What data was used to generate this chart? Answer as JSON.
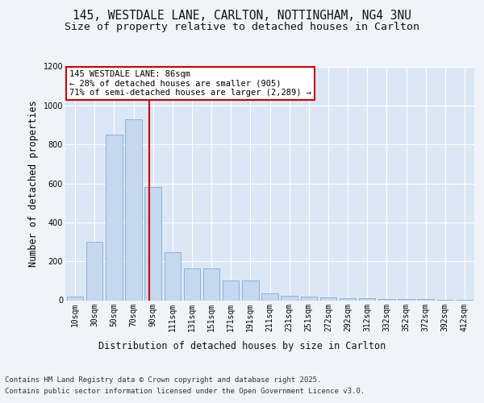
{
  "title_line1": "145, WESTDALE LANE, CARLTON, NOTTINGHAM, NG4 3NU",
  "title_line2": "Size of property relative to detached houses in Carlton",
  "xlabel": "Distribution of detached houses by size in Carlton",
  "ylabel": "Number of detached properties",
  "categories": [
    "10sqm",
    "30sqm",
    "50sqm",
    "70sqm",
    "90sqm",
    "111sqm",
    "131sqm",
    "151sqm",
    "171sqm",
    "191sqm",
    "211sqm",
    "231sqm",
    "251sqm",
    "272sqm",
    "292sqm",
    "312sqm",
    "332sqm",
    "352sqm",
    "372sqm",
    "392sqm",
    "412sqm"
  ],
  "values": [
    20,
    300,
    850,
    930,
    580,
    245,
    165,
    165,
    100,
    100,
    35,
    22,
    20,
    15,
    10,
    10,
    5,
    5,
    5,
    3,
    3
  ],
  "bar_color": "#c5d8f0",
  "bar_edge_color": "#7aafd4",
  "annotation_text": "145 WESTDALE LANE: 86sqm\n← 28% of detached houses are smaller (905)\n71% of semi-detached houses are larger (2,289) →",
  "annotation_box_color": "#ffffff",
  "annotation_box_edge": "#cc0000",
  "red_line_color": "#cc0000",
  "red_line_xindex": 3.82,
  "ylim": [
    0,
    1200
  ],
  "yticks": [
    0,
    200,
    400,
    600,
    800,
    1000,
    1200
  ],
  "footer_line1": "Contains HM Land Registry data © Crown copyright and database right 2025.",
  "footer_line2": "Contains public sector information licensed under the Open Government Licence v3.0.",
  "fig_bg_color": "#f0f4fa",
  "plot_bg_color": "#dce7f5",
  "title_fontsize": 10.5,
  "subtitle_fontsize": 9.5,
  "axis_label_fontsize": 8.5,
  "tick_fontsize": 7,
  "footer_fontsize": 6.5,
  "annotation_fontsize": 7.5
}
